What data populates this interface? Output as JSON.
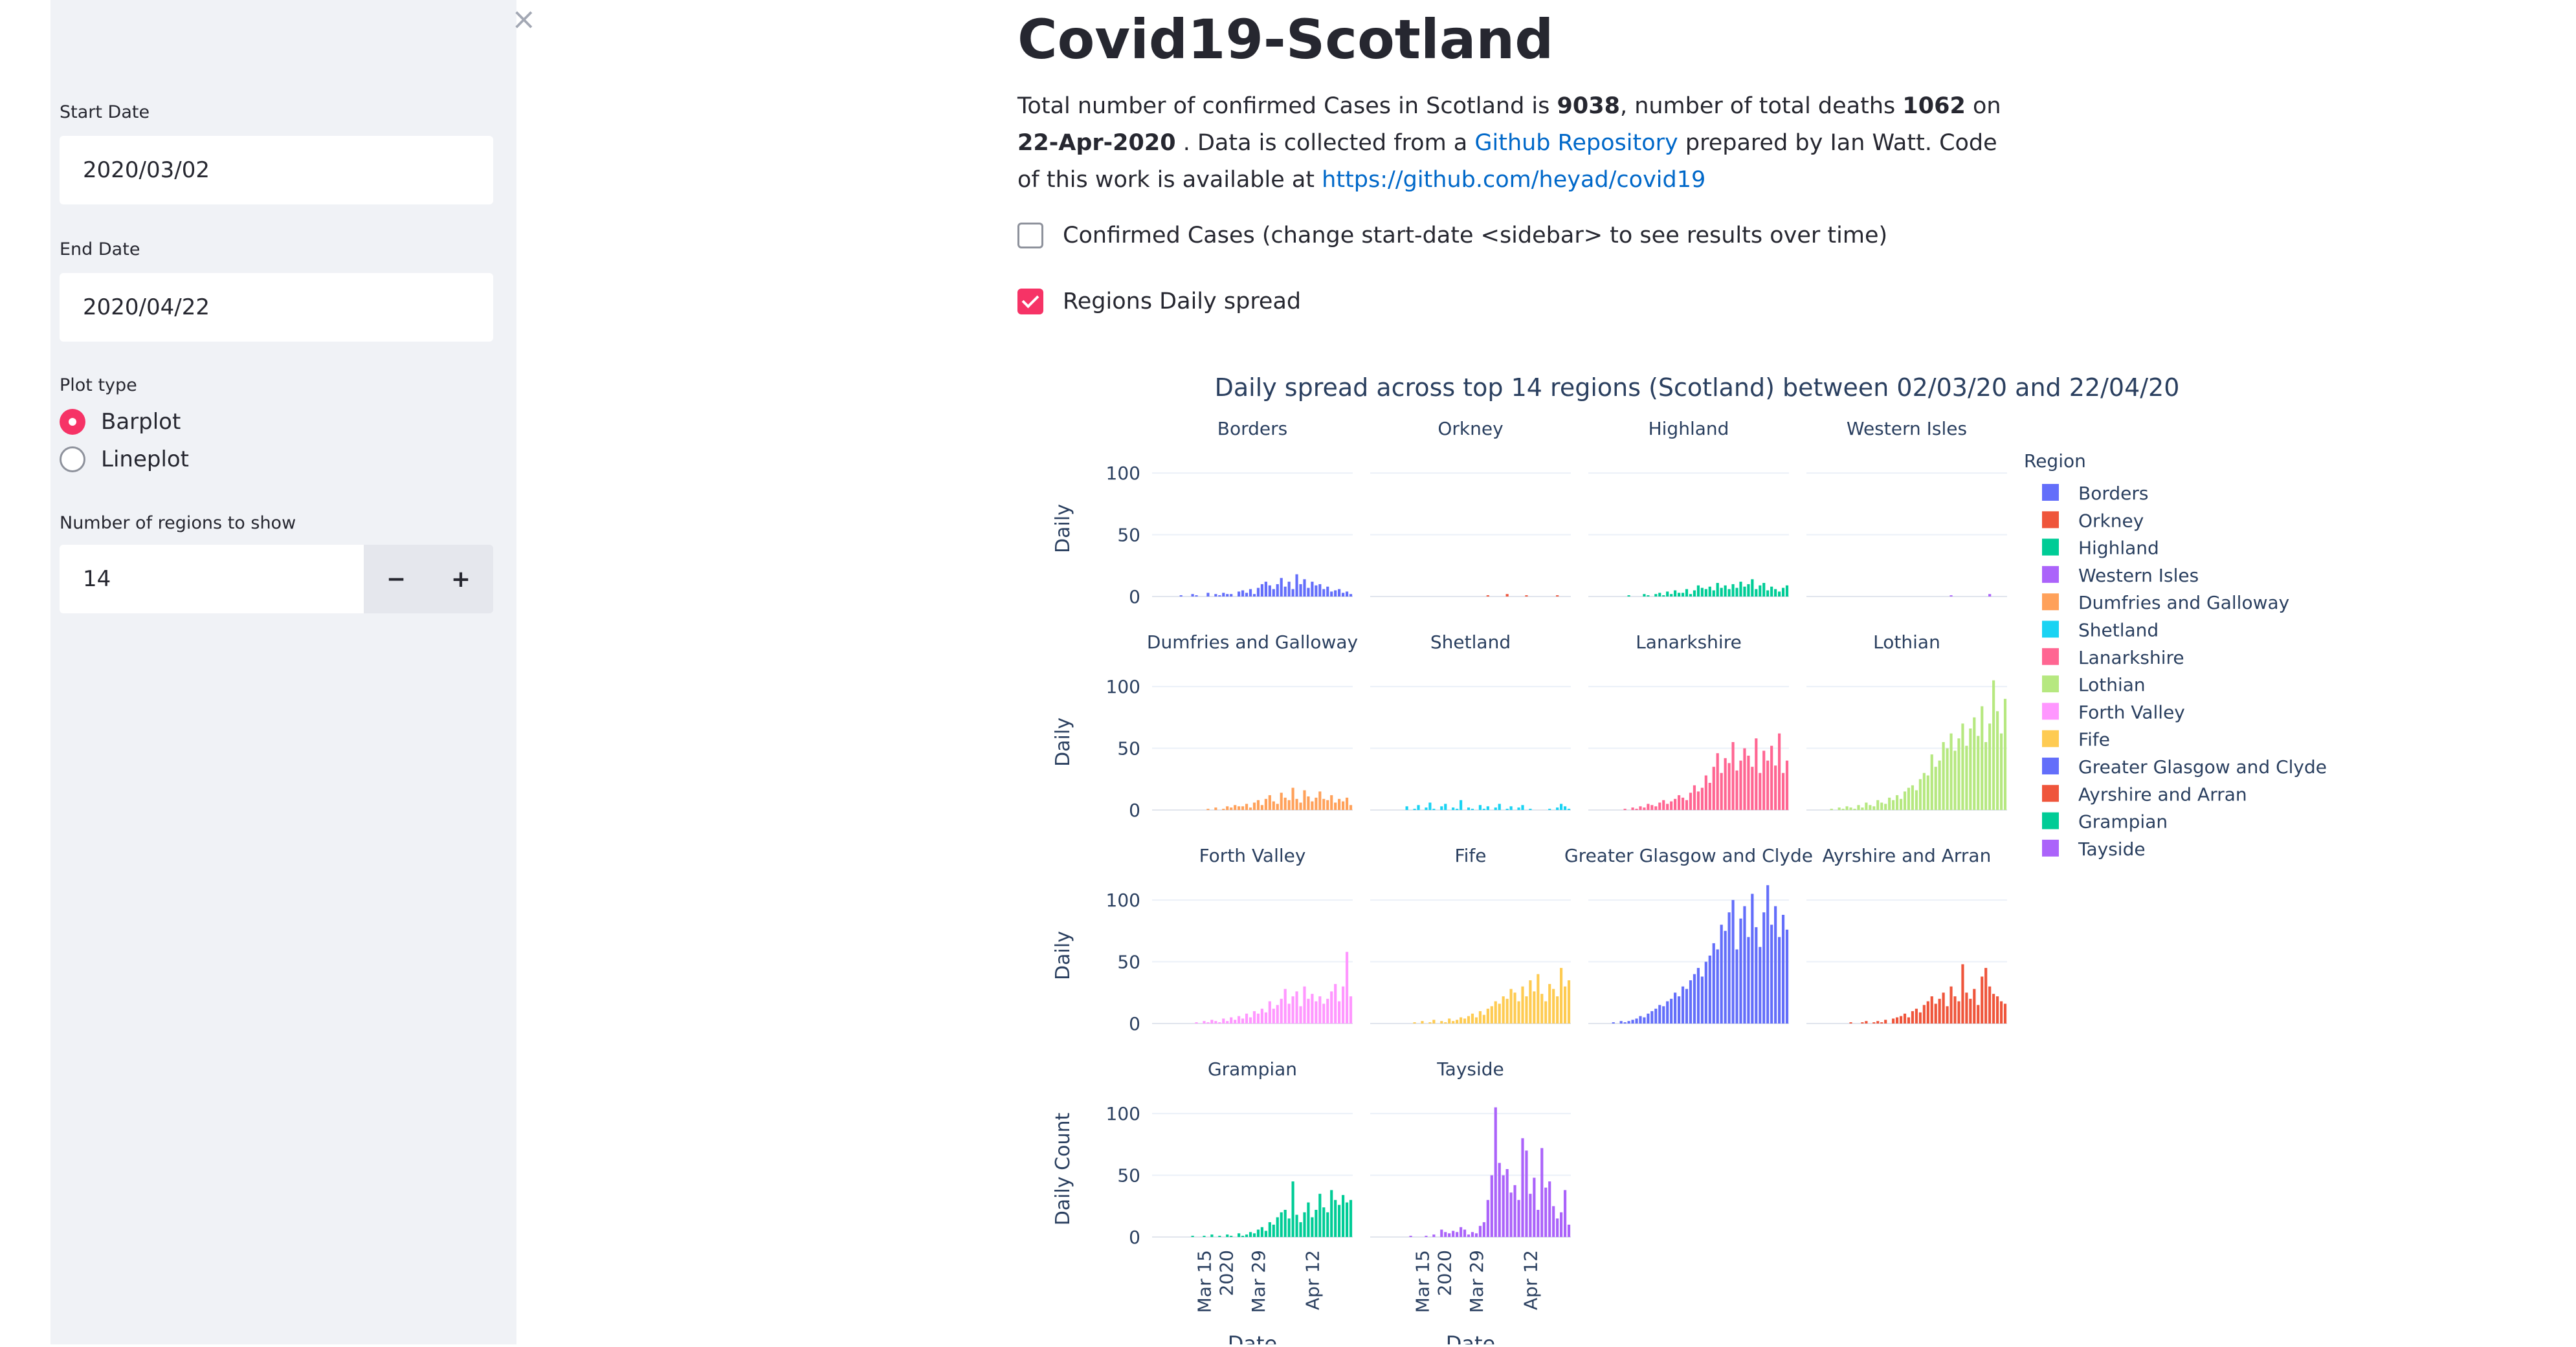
{
  "sidebar": {
    "start_date_label": "Start Date",
    "start_date_value": "2020/03/02",
    "end_date_label": "End Date",
    "end_date_value": "2020/04/22",
    "plot_type_label": "Plot type",
    "plot_options": [
      "Barplot",
      "Lineplot"
    ],
    "plot_selected": "Barplot",
    "regions_label": "Number of regions to show",
    "regions_value": "14",
    "minus": "−",
    "plus": "+",
    "close": "×"
  },
  "main": {
    "title": "Covid19-Scotland",
    "para": {
      "t1": "Total number of confirmed Cases in Scotland is ",
      "cases": "9038",
      "t2": ", number of total deaths ",
      "deaths": "1062",
      "t3": " on ",
      "date": "22-Apr-2020",
      "t4": " . Data is collected from a ",
      "repo_link": "Github Repository",
      "t5": " prepared by Ian Watt. Code of this work is available at ",
      "code_link": "https://github.com/heyad/covid19"
    },
    "checkbox_confirmed": "Confirmed Cases (change start-date <sidebar> to see results over time)",
    "checkbox_confirmed_checked": false,
    "checkbox_regions": "Regions Daily spread",
    "checkbox_regions_checked": true
  },
  "colors": {
    "accent": "#f63366",
    "link": "#0068c9"
  },
  "chart_data": {
    "type": "bar",
    "title": "Daily spread across top 14 regions (Scotland) between 02/03/20 and 22/04/20",
    "ylabel": "Daily",
    "ylabel_last_row": "Daily Count",
    "xlabel": "Date",
    "ylim": [
      0,
      110
    ],
    "yticks": [
      0,
      50,
      100
    ],
    "xticks": [
      "Mar 15\n2020",
      "Mar 29",
      "Apr 12"
    ],
    "legend_title": "Region",
    "legend_position": "right",
    "series": [
      {
        "name": "Borders",
        "color": "#636efa",
        "values": [
          0,
          0,
          0,
          0,
          0,
          0,
          0,
          1,
          0,
          0,
          2,
          1,
          0,
          0,
          3,
          0,
          2,
          1,
          3,
          2,
          2,
          0,
          4,
          5,
          3,
          6,
          2,
          7,
          10,
          12,
          9,
          6,
          10,
          15,
          8,
          12,
          6,
          18,
          10,
          14,
          7,
          12,
          9,
          10,
          6,
          8,
          4,
          5,
          6,
          3,
          4,
          2
        ]
      },
      {
        "name": "Orkney",
        "color": "#ef553b",
        "values": [
          0,
          0,
          0,
          0,
          0,
          0,
          0,
          0,
          0,
          0,
          0,
          0,
          0,
          0,
          0,
          0,
          0,
          0,
          0,
          0,
          0,
          0,
          0,
          0,
          0,
          0,
          0,
          0,
          0,
          0,
          1,
          0,
          0,
          0,
          0,
          2,
          0,
          0,
          0,
          0,
          1,
          0,
          0,
          0,
          0,
          0,
          0,
          0,
          1,
          0,
          0,
          0
        ]
      },
      {
        "name": "Highland",
        "color": "#00cc96",
        "values": [
          0,
          0,
          0,
          0,
          0,
          0,
          0,
          0,
          0,
          0,
          1,
          0,
          0,
          0,
          2,
          1,
          0,
          2,
          3,
          1,
          4,
          2,
          5,
          3,
          3,
          6,
          2,
          5,
          9,
          7,
          6,
          8,
          5,
          11,
          7,
          9,
          6,
          10,
          7,
          12,
          8,
          10,
          14,
          6,
          9,
          11,
          5,
          8,
          6,
          4,
          7,
          9
        ]
      },
      {
        "name": "Western Isles",
        "color": "#ab63fa",
        "values": [
          0,
          0,
          0,
          0,
          0,
          0,
          0,
          0,
          0,
          0,
          0,
          0,
          0,
          0,
          0,
          0,
          0,
          0,
          0,
          0,
          0,
          0,
          0,
          0,
          0,
          0,
          0,
          0,
          0,
          0,
          0,
          0,
          0,
          0,
          0,
          0,
          0,
          1,
          0,
          0,
          0,
          0,
          0,
          0,
          0,
          0,
          0,
          2,
          0,
          0,
          0,
          0
        ]
      },
      {
        "name": "Dumfries and Galloway",
        "color": "#ffa15a",
        "values": [
          0,
          0,
          0,
          0,
          0,
          0,
          0,
          0,
          0,
          0,
          0,
          0,
          0,
          0,
          1,
          0,
          2,
          0,
          1,
          3,
          2,
          4,
          3,
          3,
          5,
          2,
          6,
          8,
          4,
          9,
          12,
          7,
          5,
          14,
          10,
          8,
          18,
          9,
          6,
          16,
          11,
          7,
          10,
          15,
          9,
          8,
          12,
          6,
          9,
          7,
          10,
          4
        ]
      },
      {
        "name": "Shetland",
        "color": "#19d3f3",
        "values": [
          0,
          0,
          0,
          0,
          0,
          0,
          0,
          0,
          0,
          3,
          0,
          1,
          4,
          0,
          2,
          6,
          1,
          0,
          3,
          5,
          0,
          2,
          1,
          8,
          0,
          2,
          1,
          0,
          4,
          1,
          3,
          0,
          2,
          5,
          0,
          1,
          3,
          0,
          2,
          4,
          0,
          1,
          0,
          0,
          0,
          0,
          1,
          0,
          2,
          5,
          3,
          1
        ]
      },
      {
        "name": "Lanarkshire",
        "color": "#ff6692",
        "values": [
          0,
          0,
          0,
          0,
          0,
          0,
          0,
          0,
          0,
          1,
          0,
          2,
          1,
          3,
          2,
          5,
          4,
          3,
          6,
          8,
          5,
          7,
          9,
          12,
          10,
          8,
          14,
          20,
          15,
          18,
          28,
          22,
          35,
          46,
          30,
          42,
          38,
          55,
          32,
          40,
          50,
          44,
          35,
          58,
          30,
          48,
          40,
          52,
          36,
          62,
          30,
          40
        ]
      },
      {
        "name": "Lothian",
        "color": "#b6e880",
        "values": [
          0,
          0,
          0,
          0,
          0,
          0,
          1,
          0,
          2,
          1,
          3,
          2,
          1,
          4,
          2,
          6,
          4,
          3,
          8,
          6,
          5,
          10,
          8,
          12,
          9,
          15,
          18,
          20,
          16,
          25,
          30,
          28,
          45,
          35,
          40,
          55,
          50,
          62,
          48,
          58,
          70,
          52,
          66,
          75,
          60,
          84,
          55,
          70,
          105,
          80,
          62,
          90
        ]
      },
      {
        "name": "Forth Valley",
        "color": "#ff97ff",
        "values": [
          0,
          0,
          0,
          0,
          0,
          0,
          0,
          0,
          0,
          0,
          0,
          1,
          0,
          2,
          1,
          3,
          2,
          1,
          4,
          2,
          5,
          3,
          6,
          4,
          8,
          5,
          10,
          8,
          12,
          9,
          18,
          12,
          15,
          20,
          28,
          16,
          22,
          26,
          14,
          30,
          20,
          24,
          18,
          22,
          16,
          20,
          26,
          32,
          18,
          30,
          58,
          22
        ]
      },
      {
        "name": "Fife",
        "color": "#fecb52",
        "values": [
          0,
          0,
          0,
          0,
          0,
          0,
          0,
          0,
          0,
          0,
          0,
          1,
          0,
          2,
          0,
          1,
          3,
          0,
          2,
          1,
          4,
          2,
          3,
          5,
          4,
          6,
          8,
          5,
          10,
          7,
          12,
          14,
          18,
          16,
          22,
          20,
          28,
          25,
          18,
          30,
          22,
          35,
          26,
          40,
          24,
          18,
          32,
          28,
          22,
          45,
          30,
          35
        ]
      },
      {
        "name": "Greater Glasgow and Clyde",
        "color": "#636efa",
        "values": [
          0,
          0,
          0,
          0,
          0,
          0,
          1,
          0,
          2,
          1,
          2,
          3,
          4,
          6,
          5,
          8,
          10,
          12,
          15,
          14,
          18,
          20,
          25,
          22,
          30,
          28,
          35,
          40,
          45,
          38,
          50,
          55,
          65,
          60,
          80,
          75,
          90,
          100,
          60,
          85,
          95,
          70,
          105,
          78,
          62,
          90,
          112,
          80,
          95,
          70,
          88,
          76
        ]
      },
      {
        "name": "Ayrshire and Arran",
        "color": "#ef553b",
        "values": [
          0,
          0,
          0,
          0,
          0,
          0,
          0,
          0,
          0,
          0,
          0,
          1,
          0,
          0,
          1,
          2,
          0,
          1,
          2,
          1,
          3,
          0,
          4,
          5,
          6,
          8,
          5,
          10,
          12,
          9,
          15,
          18,
          22,
          16,
          20,
          25,
          14,
          30,
          22,
          18,
          48,
          25,
          20,
          28,
          15,
          38,
          45,
          30,
          24,
          22,
          18,
          16
        ]
      },
      {
        "name": "Grampian",
        "color": "#00cc96",
        "values": [
          0,
          0,
          0,
          0,
          0,
          0,
          0,
          0,
          0,
          0,
          1,
          0,
          0,
          1,
          0,
          2,
          0,
          1,
          0,
          2,
          1,
          0,
          3,
          1,
          2,
          4,
          3,
          6,
          8,
          5,
          12,
          10,
          16,
          20,
          22,
          15,
          45,
          18,
          12,
          20,
          28,
          16,
          22,
          35,
          24,
          20,
          38,
          30,
          26,
          34,
          28,
          30
        ]
      },
      {
        "name": "Tayside",
        "color": "#ab63fa",
        "values": [
          0,
          0,
          0,
          0,
          0,
          0,
          0,
          0,
          0,
          0,
          1,
          0,
          0,
          0,
          1,
          0,
          2,
          0,
          6,
          4,
          3,
          5,
          4,
          8,
          6,
          2,
          4,
          3,
          9,
          12,
          30,
          50,
          105,
          60,
          50,
          55,
          36,
          42,
          30,
          80,
          70,
          35,
          48,
          22,
          72,
          40,
          45,
          25,
          15,
          20,
          38,
          10
        ]
      }
    ]
  }
}
